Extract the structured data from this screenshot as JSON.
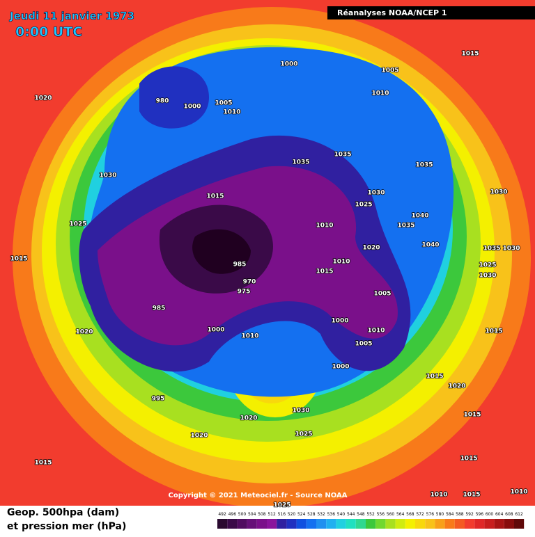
{
  "header": {
    "title": "Jeudi 11 janvier 1973",
    "time": "0:00 UTC",
    "source": "Réanalyses NOAA/NCEP 1"
  },
  "copyright": "Copyright © 2021 Meteociel.fr - Source NOAA",
  "legend": {
    "line1": "Geop. 500hpa (dam)",
    "line2": "et pression mer (hPa)"
  },
  "colorbar": {
    "ticks": [
      492,
      496,
      500,
      504,
      508,
      512,
      516,
      520,
      524,
      528,
      532,
      536,
      540,
      544,
      548,
      552,
      556,
      560,
      564,
      568,
      572,
      576,
      580,
      584,
      588,
      592,
      596,
      600,
      604,
      608,
      612
    ],
    "colors": [
      "#2a0a30",
      "#3a0a48",
      "#500c60",
      "#661078",
      "#7a108a",
      "#8a149c",
      "#3020a0",
      "#2030c0",
      "#1050e0",
      "#1470f0",
      "#2090f0",
      "#20b0f0",
      "#20d0e0",
      "#20e0c0",
      "#30d890",
      "#3cc83c",
      "#70d830",
      "#a8e020",
      "#d0ec10",
      "#f4f000",
      "#f8d80c",
      "#f8c21a",
      "#f8a01a",
      "#f87a1a",
      "#f45a22",
      "#f23c2e",
      "#e02828",
      "#c81e1e",
      "#a81414",
      "#880c0c",
      "#600808"
    ]
  },
  "isobar_labels": [
    "1015",
    "1000",
    "1005",
    "1010",
    "980",
    "1000",
    "1005",
    "1010",
    "1020",
    "1035",
    "1035",
    "1035",
    "1030",
    "1030",
    "1025",
    "1030",
    "1015",
    "1040",
    "1035",
    "1025",
    "1010",
    "1020",
    "1040",
    "1035",
    "1030",
    "1015",
    "985",
    "1010",
    "1015",
    "1025",
    "1030",
    "970",
    "975",
    "1005",
    "985",
    "1000",
    "1010",
    "1000",
    "1010",
    "1020",
    "1015",
    "1005",
    "1000",
    "1015",
    "1020",
    "995",
    "1030",
    "1015",
    "1020",
    "1025",
    "1020",
    "1015",
    "1015",
    "1010",
    "1015",
    "1010",
    "1025"
  ]
}
